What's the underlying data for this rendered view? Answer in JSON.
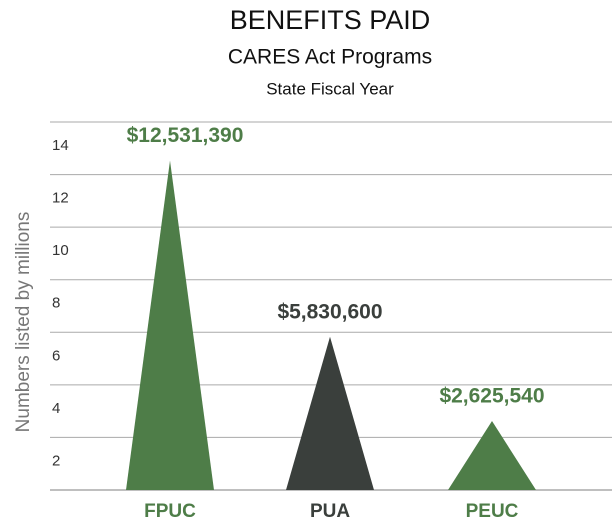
{
  "chart_data": {
    "type": "bar",
    "shape": "triangle",
    "title": "BENEFITS PAID",
    "subtitle": "CARES Act Programs",
    "subtitle_2": "State Fiscal Year",
    "y_label": "Numbers listed by millions",
    "categories": [
      "FPUC",
      "PUA",
      "PEUC"
    ],
    "values": [
      12.53139,
      5.8306,
      2.62554
    ],
    "value_labels": [
      "$12,531,390",
      "$5,830,600",
      "$2,625,540"
    ],
    "colors": [
      "#4e7d48",
      "#3a3f3c",
      "#4e7d48"
    ],
    "ylim": [
      0,
      14
    ],
    "yticks": [
      2,
      4,
      6,
      8,
      10,
      12,
      14
    ],
    "grid": true
  }
}
